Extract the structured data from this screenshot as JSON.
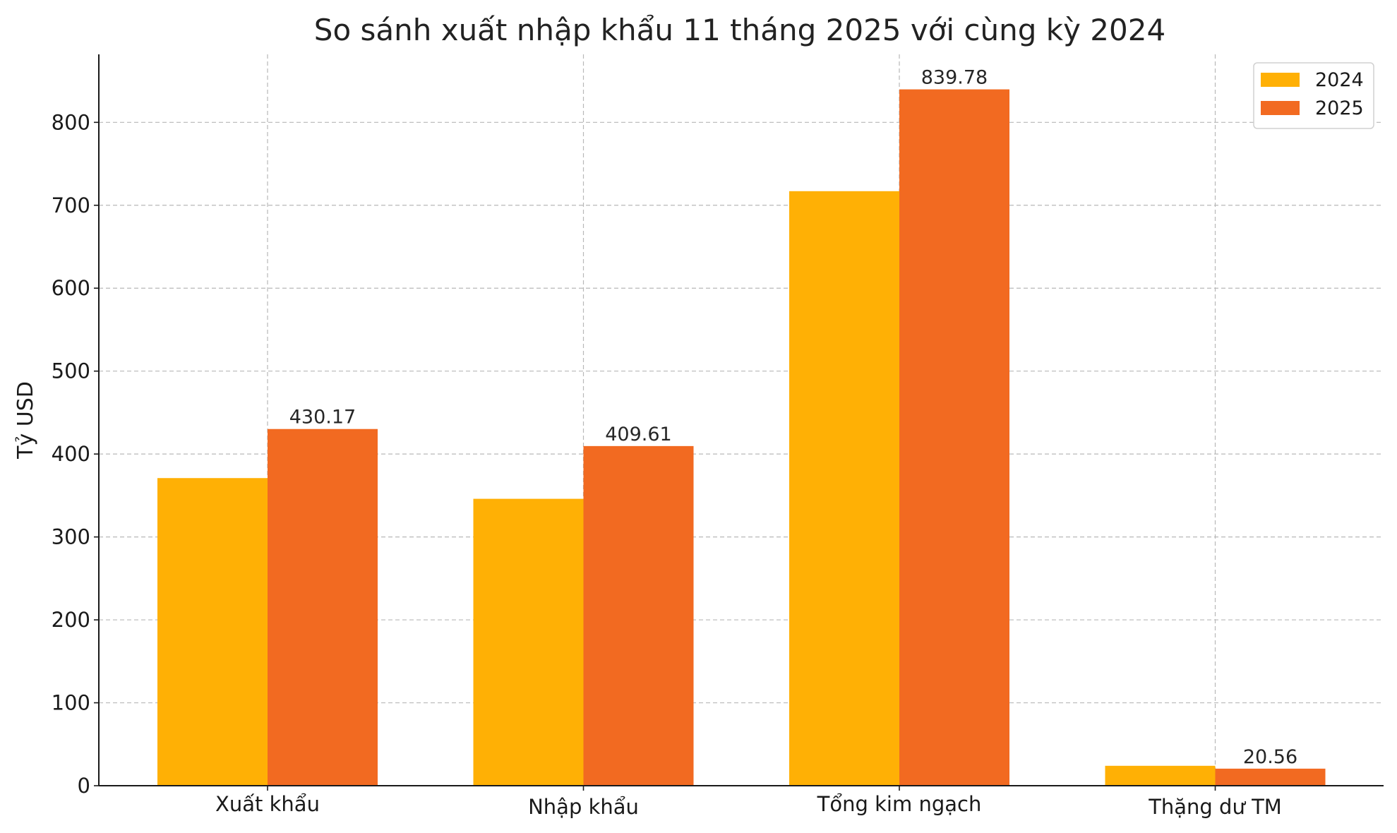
{
  "chart_data": {
    "type": "bar",
    "title": "So sánh xuất nhập khẩu 11 tháng 2025 với cùng kỳ 2024",
    "xlabel": "",
    "ylabel": "Tỷ USD",
    "categories": [
      "Xuất khẩu",
      "Nhập khẩu",
      "Tổng kim ngạch",
      "Thặng dư TM"
    ],
    "series": [
      {
        "name": "2024",
        "color": "#FFB005",
        "values": [
          371.0,
          346.0,
          717.0,
          24.0
        ],
        "labels": [
          "",
          "",
          "",
          ""
        ]
      },
      {
        "name": "2025",
        "color": "#F26A21",
        "values": [
          430.17,
          409.61,
          839.78,
          20.56
        ],
        "labels": [
          "430.17",
          "409.61",
          "839.78",
          "20.56"
        ]
      }
    ],
    "ylim": [
      0,
      882
    ],
    "yticks": [
      0,
      100,
      200,
      300,
      400,
      500,
      600,
      700,
      800
    ],
    "grid": true,
    "legend_position": "top-right"
  }
}
